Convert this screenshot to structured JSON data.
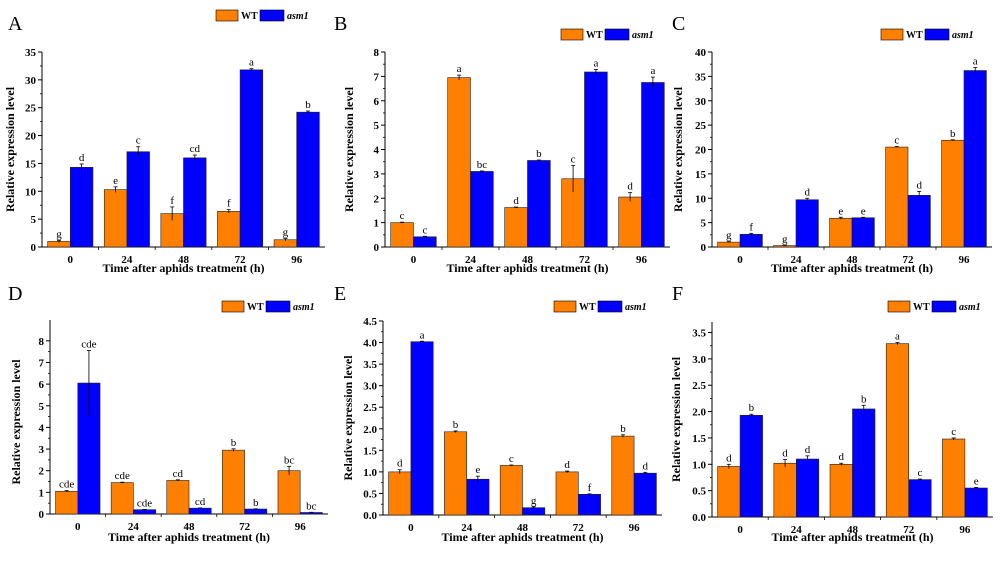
{
  "colors": {
    "wt": "#ff7f00",
    "asm1": "#0000ff",
    "axis": "#000000"
  },
  "legend": {
    "wt_label": "WT",
    "asm1_label": "asm1"
  },
  "chart_data": [
    {
      "panel": "A",
      "type": "bar",
      "categories": [
        "0",
        "24",
        "48",
        "72",
        "96"
      ],
      "xlabel": "Time after aphids treatment (h)",
      "ylabel": "Relative expression level",
      "ylim": [
        0,
        35
      ],
      "yticks": [
        0,
        5,
        10,
        15,
        20,
        25,
        30,
        35
      ],
      "ytick_labels": [
        "0",
        "5",
        "10",
        "15",
        "20",
        "25",
        "30",
        "35"
      ],
      "legend_position": "top-right",
      "series": [
        {
          "name": "WT",
          "values": [
            1.0,
            10.3,
            6.0,
            6.4,
            1.3
          ],
          "errors": [
            0.2,
            0.5,
            1.2,
            0.3,
            0.2
          ],
          "labels": [
            "g",
            "e",
            "f",
            "f",
            "g"
          ]
        },
        {
          "name": "asm1",
          "values": [
            14.3,
            17.1,
            16.0,
            31.8,
            24.2
          ],
          "errors": [
            0.6,
            0.9,
            0.5,
            0.2,
            0.2
          ],
          "labels": [
            "d",
            "c",
            "cd",
            "a",
            "b"
          ]
        }
      ]
    },
    {
      "panel": "B",
      "type": "bar",
      "categories": [
        "0",
        "24",
        "48",
        "72",
        "96"
      ],
      "xlabel": "Time after aphids treatment (h)",
      "ylabel": "Relative expression level",
      "ylim": [
        0,
        8
      ],
      "yticks": [
        0,
        1,
        2,
        3,
        4,
        5,
        6,
        7,
        8
      ],
      "ytick_labels": [
        "0",
        "1",
        "2",
        "3",
        "4",
        "5",
        "6",
        "7",
        "8"
      ],
      "legend_position": "top-right",
      "series": [
        {
          "name": "WT",
          "values": [
            1.0,
            6.95,
            1.62,
            2.8,
            2.05
          ],
          "errors": [
            0.02,
            0.1,
            0.02,
            0.55,
            0.18
          ],
          "labels": [
            "c",
            "a",
            "d",
            "c",
            "d"
          ]
        },
        {
          "name": "asm1",
          "values": [
            0.42,
            3.1,
            3.55,
            7.18,
            6.75
          ],
          "errors": [
            0.02,
            0.02,
            0.02,
            0.1,
            0.22
          ],
          "labels": [
            "c",
            "bc",
            "b",
            "a",
            "a"
          ]
        }
      ]
    },
    {
      "panel": "C",
      "type": "bar",
      "categories": [
        "0",
        "24",
        "48",
        "72",
        "96"
      ],
      "xlabel": "Time after aphids treatment (h)",
      "ylabel": "Relative expression level",
      "ylim": [
        0,
        40
      ],
      "yticks": [
        0,
        5,
        10,
        15,
        20,
        25,
        30,
        35,
        40
      ],
      "ytick_labels": [
        "0",
        "5",
        "10",
        "15",
        "20",
        "25",
        "30",
        "35",
        "40"
      ],
      "legend_position": "top-right",
      "series": [
        {
          "name": "WT",
          "values": [
            1.0,
            0.3,
            5.9,
            20.5,
            21.9
          ],
          "errors": [
            0.1,
            0.05,
            0.2,
            0.1,
            0.1
          ],
          "labels": [
            "g",
            "g",
            "e",
            "c",
            "b"
          ]
        },
        {
          "name": "asm1",
          "values": [
            2.6,
            9.7,
            6.0,
            10.6,
            36.2
          ],
          "errors": [
            0.2,
            0.3,
            0.1,
            0.8,
            0.6
          ],
          "labels": [
            "f",
            "d",
            "e",
            "d",
            "a"
          ]
        }
      ]
    },
    {
      "panel": "D",
      "type": "bar",
      "categories": [
        "0",
        "24",
        "48",
        "72",
        "96"
      ],
      "xlabel": "Time after aphids treatment (h)",
      "ylabel": "Relative expression level",
      "ylim": [
        0,
        8.5
      ],
      "yticks": [
        0,
        1,
        2,
        3,
        4,
        5,
        6,
        7,
        8
      ],
      "ytick_labels": [
        "0",
        "1",
        "2",
        "3",
        "4",
        "5",
        "6",
        "7",
        "8"
      ],
      "legend_position": "top-right",
      "series": [
        {
          "name": "WT",
          "values": [
            1.05,
            1.45,
            1.55,
            2.95,
            2.0
          ],
          "errors": [
            0.03,
            0.02,
            0.03,
            0.06,
            0.2
          ],
          "labels": [
            "cde",
            "cde",
            "cd",
            "b",
            "bc"
          ]
        },
        {
          "name": "asm1",
          "values": [
            6.05,
            0.2,
            0.27,
            0.23,
            0.07
          ],
          "errors": [
            1.5,
            0.01,
            0.01,
            0.01,
            0.01
          ],
          "labels": [
            "cde",
            "cde",
            "cd",
            "b",
            "bc"
          ]
        }
      ]
    },
    {
      "panel": "E",
      "type": "bar",
      "categories": [
        "0",
        "24",
        "48",
        "72",
        "96"
      ],
      "xlabel": "Time after aphids treatment (h)",
      "ylabel": "Relative expression level",
      "ylim": [
        0,
        4.5
      ],
      "yticks": [
        0,
        0.5,
        1,
        1.5,
        2,
        2.5,
        3,
        3.5,
        4,
        4.5
      ],
      "ytick_labels": [
        "0.0",
        "0.5",
        "1.0",
        "1.5",
        "2.0",
        "2.5",
        "3.0",
        "3.5",
        "4.0",
        "4.5"
      ],
      "legend_position": "top-right",
      "series": [
        {
          "name": "WT",
          "values": [
            1.0,
            1.93,
            1.15,
            1.0,
            1.83
          ],
          "errors": [
            0.05,
            0.02,
            0.01,
            0.02,
            0.03
          ],
          "labels": [
            "d",
            "b",
            "c",
            "d",
            "b"
          ]
        },
        {
          "name": "asm1",
          "values": [
            4.02,
            0.83,
            0.17,
            0.48,
            0.97
          ],
          "errors": [
            0.01,
            0.07,
            0.02,
            0.01,
            0.02
          ],
          "labels": [
            "a",
            "e",
            "g",
            "f",
            "d"
          ]
        }
      ]
    },
    {
      "panel": "F",
      "type": "bar",
      "categories": [
        "0",
        "24",
        "48",
        "72",
        "96"
      ],
      "xlabel": "Time after aphids treatment (h)",
      "ylabel": "Relative expression level",
      "ylim": [
        0,
        3.7
      ],
      "yticks": [
        0,
        0.5,
        1,
        1.5,
        2,
        2.5,
        3,
        3.5
      ],
      "ytick_labels": [
        "0.0",
        "0.5",
        "1.0",
        "1.5",
        "2.0",
        "2.5",
        "3.0",
        "3.5"
      ],
      "legend_position": "top-right",
      "series": [
        {
          "name": "WT",
          "values": [
            0.96,
            1.02,
            1.0,
            3.29,
            1.48
          ],
          "errors": [
            0.04,
            0.07,
            0.02,
            0.02,
            0.02
          ],
          "labels": [
            "d",
            "d",
            "d",
            "a",
            "c"
          ]
        },
        {
          "name": "asm1",
          "values": [
            1.93,
            1.1,
            2.05,
            0.71,
            0.55
          ],
          "errors": [
            0.02,
            0.06,
            0.07,
            0.01,
            0.01
          ],
          "labels": [
            "b",
            "d",
            "b",
            "c",
            "e"
          ]
        }
      ]
    }
  ]
}
